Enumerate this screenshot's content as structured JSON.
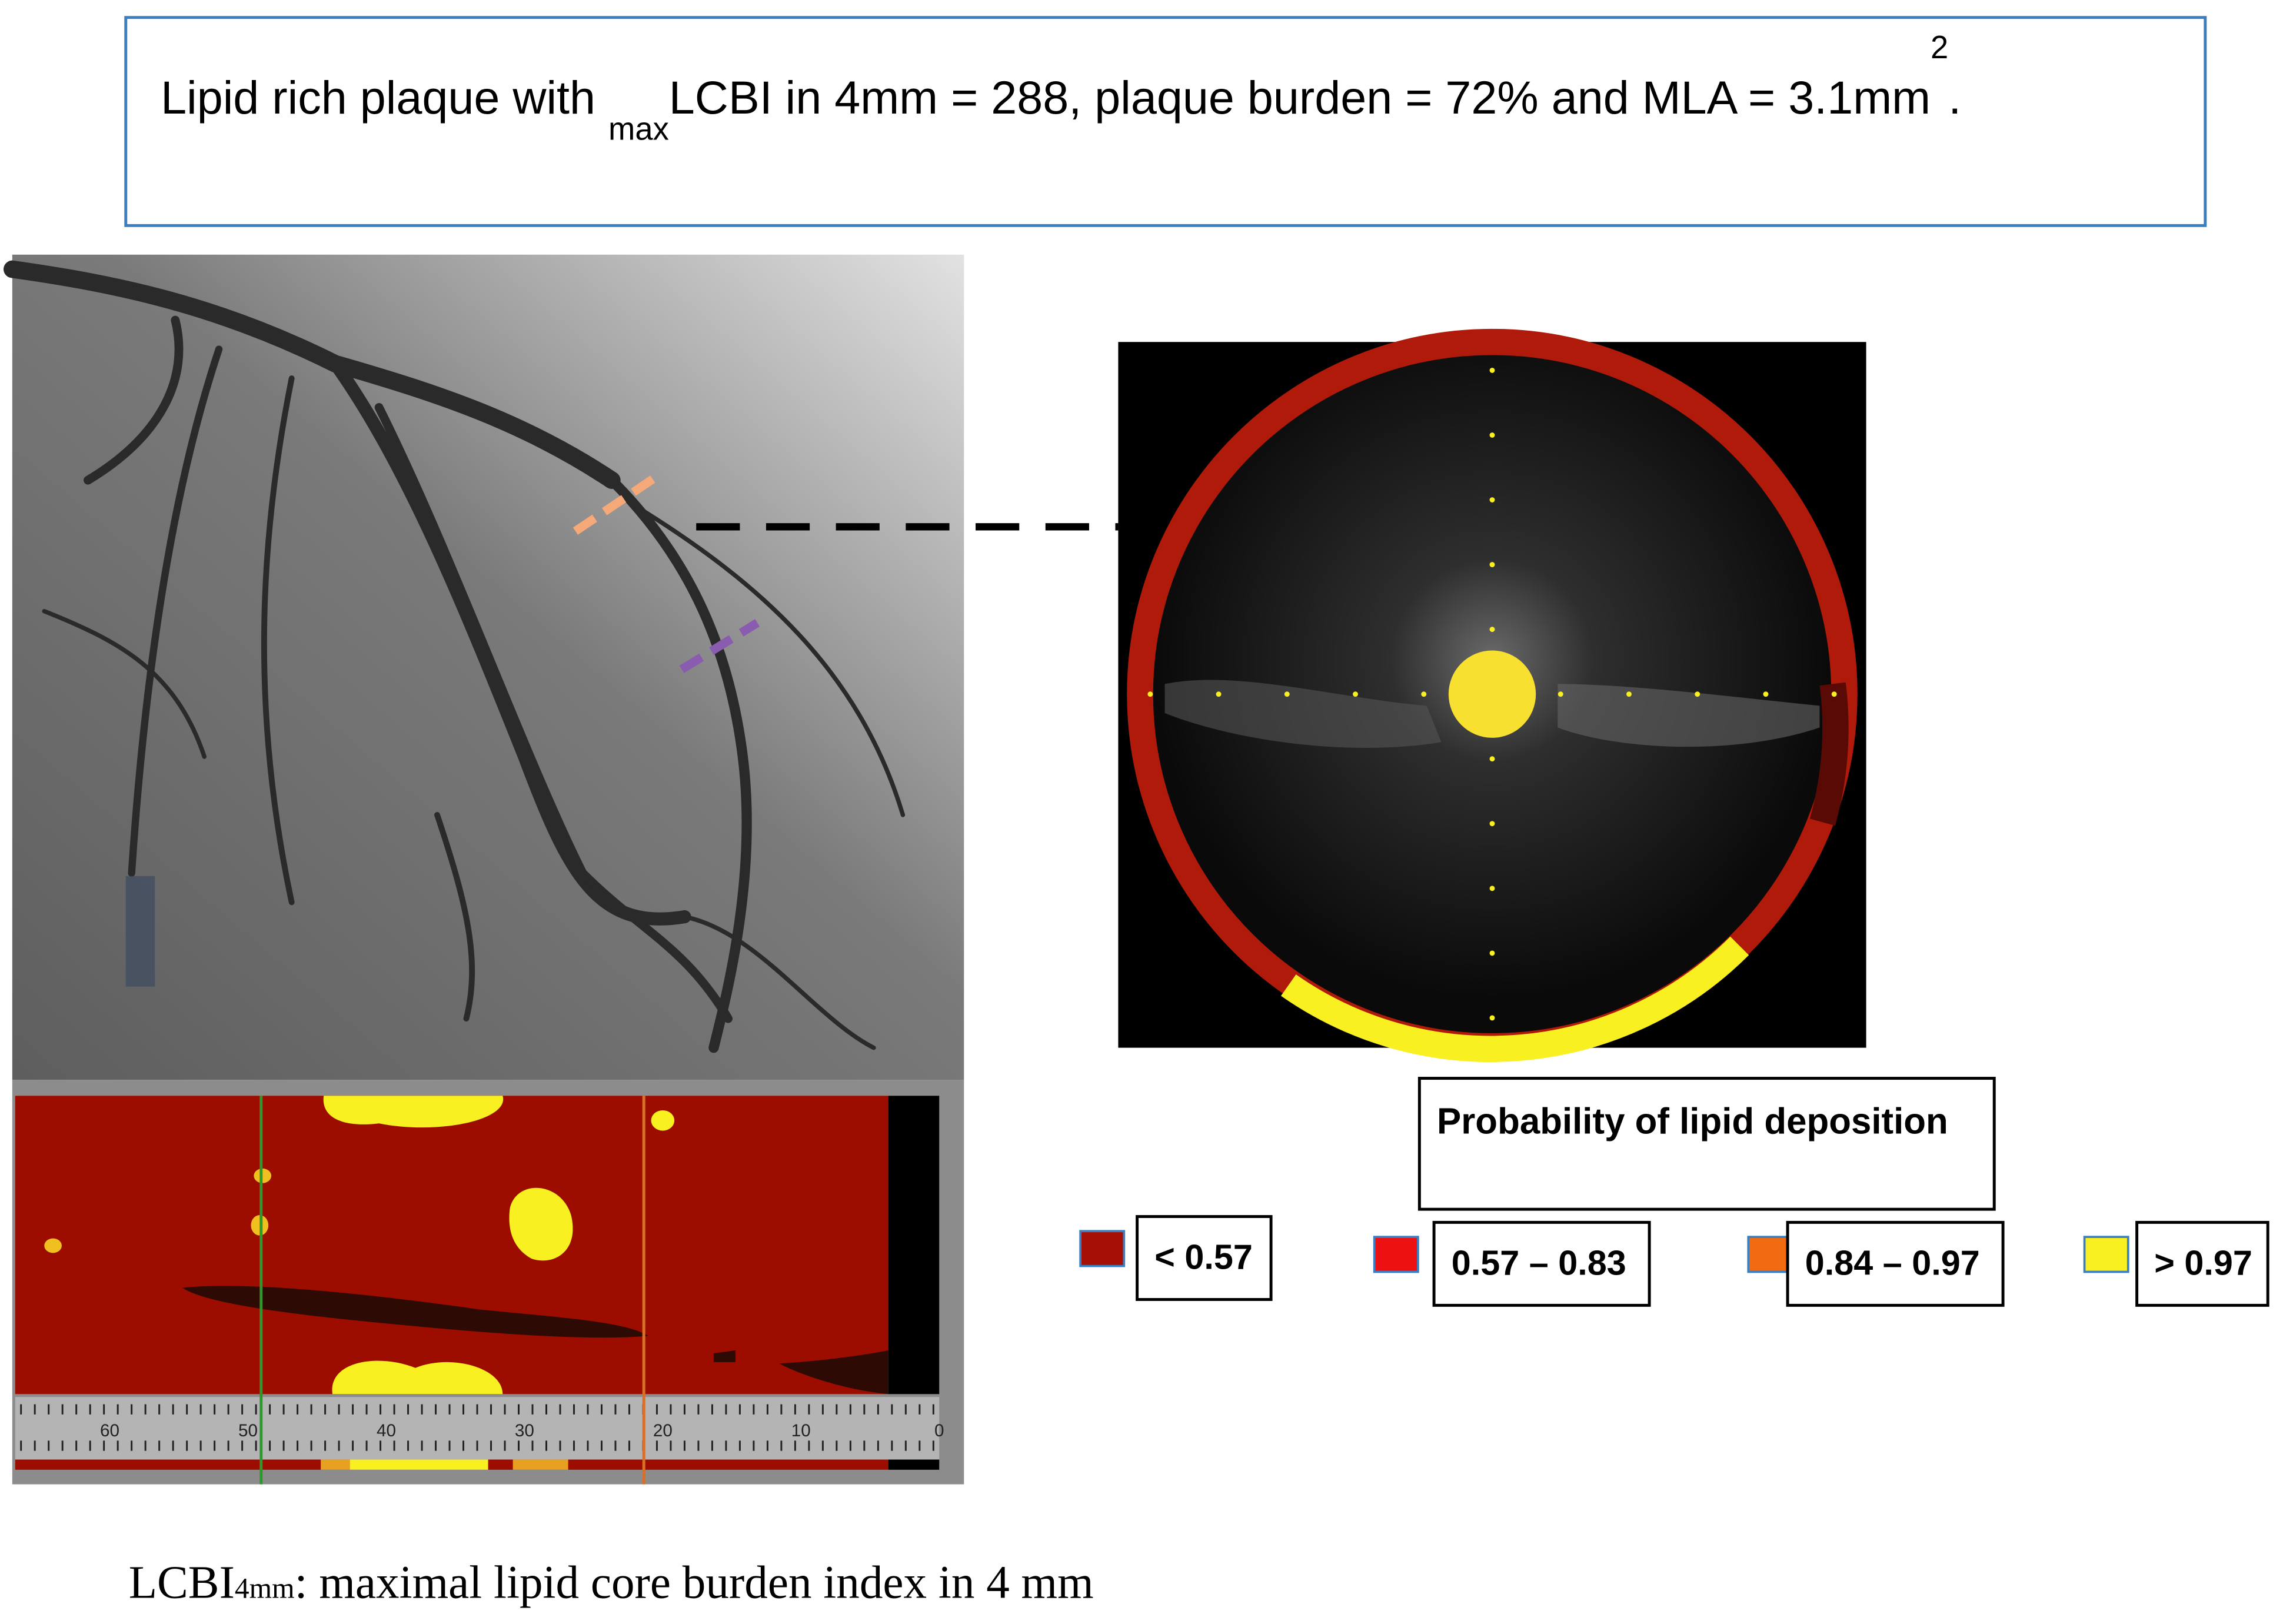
{
  "header": {
    "parts": [
      "Lipid rich plaque with ",
      "max",
      "LCBI in 4mm = 288, plaque burden = 72% and MLA = 3.1mm",
      "2",
      "."
    ]
  },
  "legend": {
    "title": "Probability of lipid deposition",
    "items": [
      {
        "label": "< 0.57",
        "color": "#a50f05"
      },
      {
        "label": "0.57 – 0.83",
        "color": "#ee1111"
      },
      {
        "label": "0.84 – 0.97",
        "color": "#f26b10"
      },
      {
        "label": "> 0.97",
        "color": "#f8f020"
      }
    ]
  },
  "chemogram": {
    "scale_labels": [
      60,
      50,
      40,
      30,
      20,
      10,
      0
    ]
  },
  "footnote": {
    "parts": [
      "LCBI",
      "4mm",
      ": maximal lipid core burden index in 4 mm"
    ]
  }
}
